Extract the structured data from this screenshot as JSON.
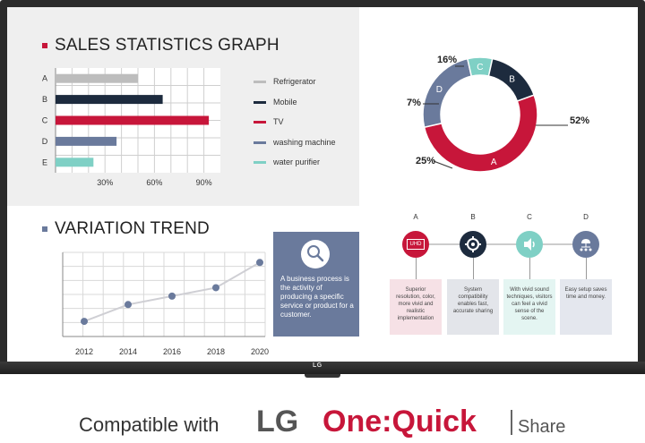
{
  "sales": {
    "title": "SALES STATISTICS GRAPH",
    "bars": [
      {
        "label": "A",
        "value": 50,
        "color": "#bdbdbd"
      },
      {
        "label": "B",
        "value": 65,
        "color": "#1d2b3e"
      },
      {
        "label": "C",
        "value": 93,
        "color": "#c7163a"
      },
      {
        "label": "D",
        "value": 37,
        "color": "#6a7a9c"
      },
      {
        "label": "E",
        "value": 23,
        "color": "#7fd0c5"
      }
    ],
    "ticks": [
      "30%",
      "60%",
      "90%"
    ],
    "legend": [
      {
        "label": "Refrigerator",
        "color": "#bdbdbd"
      },
      {
        "label": "Mobile",
        "color": "#1d2b3e"
      },
      {
        "label": "TV",
        "color": "#c7163a"
      },
      {
        "label": "washing machine",
        "color": "#6a7a9c"
      },
      {
        "label": "water purifier",
        "color": "#7fd0c5"
      }
    ]
  },
  "donut": {
    "slices": [
      {
        "label": "A",
        "pct": "52%",
        "value": 52,
        "color": "#c7163a"
      },
      {
        "label": "D",
        "pct": "25%",
        "value": 25,
        "color": "#6a7a9c"
      },
      {
        "label": "C",
        "pct": "7%",
        "value": 7,
        "color": "#7fd0c5"
      },
      {
        "label": "B",
        "pct": "16%",
        "value": 16,
        "color": "#1d2b3e"
      }
    ]
  },
  "trend": {
    "title": "VARIATION TREND",
    "years": [
      "2012",
      "2014",
      "2016",
      "2018",
      "2020"
    ],
    "values": [
      18,
      38,
      48,
      58,
      88
    ]
  },
  "info_card": {
    "text": "A business process is the activity of producing a specific service or product for a customer."
  },
  "features": [
    {
      "letter": "A",
      "icon": "uhd-icon",
      "icon_text": "UHD",
      "color": "#c7163a",
      "box_color": "#f6e1e6",
      "text": "Superior resolution, color, more vivid and realistic implementation"
    },
    {
      "letter": "B",
      "icon": "gear-icon",
      "color": "#1d2b3e",
      "box_color": "#e3e5ea",
      "text": "System compatibility enables fast, accurate sharing"
    },
    {
      "letter": "C",
      "icon": "speaker-icon",
      "color": "#7fd0c5",
      "box_color": "#e4f5f2",
      "text": "With vivid sound techniques, visitors can feel a vivid sense of the scene."
    },
    {
      "letter": "D",
      "icon": "network-icon",
      "color": "#6a7a9c",
      "box_color": "#e4e7ee",
      "text": "Easy setup saves time and money."
    }
  ],
  "tv": {
    "badge": "LG"
  },
  "footer": {
    "compat": "Compatible with",
    "lg": "LG",
    "onequick": "One:Quick",
    "share": "Share"
  },
  "chart_data": [
    {
      "type": "bar",
      "title": "SALES STATISTICS GRAPH",
      "categories": [
        "A",
        "B",
        "C",
        "D",
        "E"
      ],
      "values": [
        50,
        65,
        93,
        37,
        23
      ],
      "xlim": [
        0,
        100
      ],
      "ticks": [
        "30%",
        "60%",
        "90%"
      ],
      "legend": [
        "Refrigerator",
        "Mobile",
        "TV",
        "washing machine",
        "water purifier"
      ],
      "legend_position": "right",
      "grid": true
    },
    {
      "type": "pie",
      "categories": [
        "A",
        "B",
        "C",
        "D"
      ],
      "values": [
        52,
        16,
        7,
        25
      ]
    },
    {
      "type": "line",
      "title": "VARIATION TREND",
      "x": [
        "2012",
        "2014",
        "2016",
        "2018",
        "2020"
      ],
      "values": [
        18,
        38,
        48,
        58,
        88
      ],
      "grid": true
    }
  ]
}
